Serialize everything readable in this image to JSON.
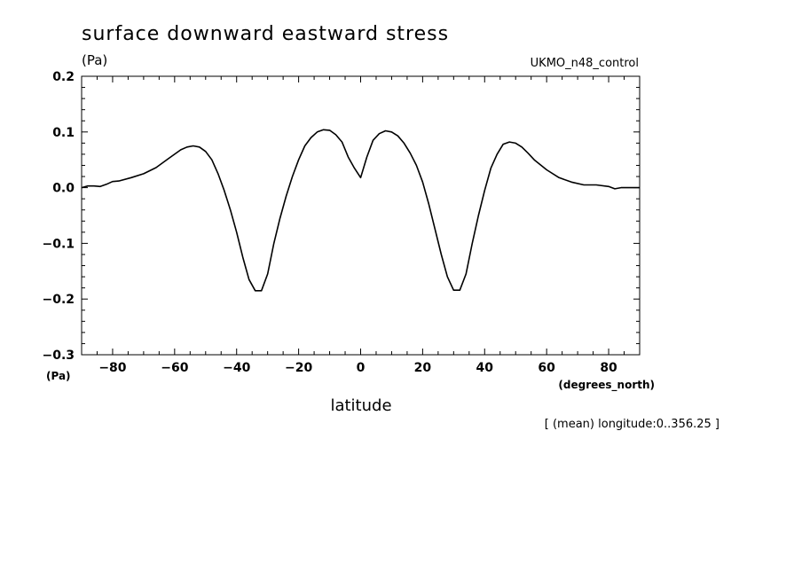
{
  "chart_data": {
    "type": "line",
    "title": "surface downward eastward stress",
    "ylabel_unit": "(Pa)",
    "yunit_bottom": "(Pa)",
    "xlabel": "latitude",
    "xunit": "(degrees_north)",
    "model_label": "UKMO_n48_control",
    "footnote": "[ (mean) longitude:0..356.25 ]",
    "xlim": [
      -90,
      90
    ],
    "ylim": [
      -0.3,
      0.2
    ],
    "xticks": [
      -80,
      -60,
      -40,
      -20,
      0,
      20,
      40,
      60,
      80
    ],
    "yticks": [
      -0.3,
      -0.2,
      -0.1,
      0.0,
      0.1,
      0.2
    ],
    "xtick_labels": [
      "−80",
      "−60",
      "−40",
      "−20",
      "0",
      "20",
      "40",
      "60",
      "80"
    ],
    "ytick_labels": [
      "−0.3",
      "−0.2",
      "−0.1",
      "0.0",
      "0.1",
      "0.2"
    ],
    "grid": false,
    "series": [
      {
        "x": [
          -90,
          -88,
          -86,
          -84,
          -82,
          -80,
          -78,
          -74,
          -70,
          -66,
          -62,
          -58,
          -56,
          -54,
          -52,
          -50,
          -48,
          -46,
          -44,
          -42,
          -40,
          -38,
          -36,
          -34,
          -32,
          -30,
          -28,
          -26,
          -24,
          -22,
          -20,
          -18,
          -16,
          -14,
          -12,
          -10,
          -8,
          -6,
          -4,
          -2,
          0,
          2,
          4,
          6,
          8,
          10,
          12,
          14,
          16,
          18,
          20,
          22,
          24,
          26,
          28,
          30,
          32,
          34,
          36,
          38,
          40,
          42,
          44,
          46,
          48,
          50,
          52,
          54,
          56,
          60,
          64,
          68,
          72,
          76,
          80,
          82,
          84,
          86,
          88,
          90
        ],
        "y": [
          0.0,
          0.003,
          0.003,
          0.002,
          0.006,
          0.011,
          0.012,
          0.018,
          0.025,
          0.036,
          0.052,
          0.068,
          0.073,
          0.075,
          0.073,
          0.065,
          0.05,
          0.025,
          -0.005,
          -0.04,
          -0.08,
          -0.125,
          -0.165,
          -0.185,
          -0.185,
          -0.155,
          -0.1,
          -0.055,
          -0.015,
          0.02,
          0.05,
          0.075,
          0.09,
          0.1,
          0.104,
          0.103,
          0.095,
          0.082,
          0.055,
          0.035,
          0.018,
          0.055,
          0.085,
          0.097,
          0.102,
          0.1,
          0.093,
          0.08,
          0.062,
          0.04,
          0.01,
          -0.03,
          -0.075,
          -0.12,
          -0.16,
          -0.184,
          -0.184,
          -0.155,
          -0.1,
          -0.05,
          -0.005,
          0.035,
          0.06,
          0.078,
          0.082,
          0.08,
          0.073,
          0.062,
          0.05,
          0.032,
          0.018,
          0.01,
          0.005,
          0.005,
          0.002,
          -0.002,
          0.0,
          0.0,
          0.0,
          0.0
        ]
      }
    ]
  }
}
